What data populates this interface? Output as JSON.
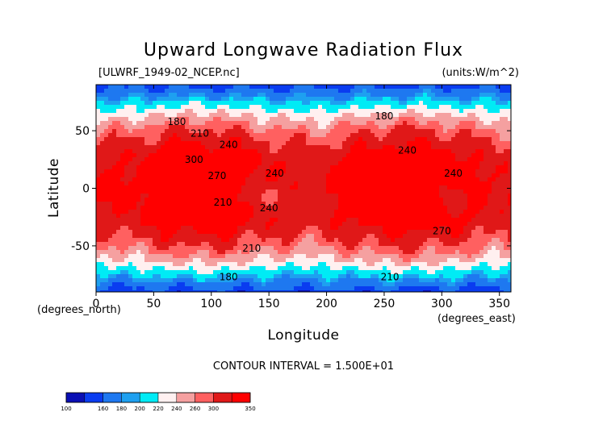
{
  "chart_data": {
    "type": "heatmap",
    "title": "Upward Longwave Radiation Flux",
    "file_label": "[ULWRF_1949-02_NCEP.nc]",
    "units_label": "(units:W/m^2)",
    "xlabel": "Longitude",
    "ylabel": "Latitude",
    "x_unit_label": "(degrees_east)",
    "y_unit_label": "(degrees_north)",
    "xlim": [
      0,
      360
    ],
    "ylim": [
      -90,
      90
    ],
    "x_ticks": [
      "0",
      "50",
      "100",
      "150",
      "200",
      "250",
      "300",
      "350"
    ],
    "y_ticks": [
      "50",
      "0",
      "-50"
    ],
    "contour_interval_text": "CONTOUR INTERVAL = 1.500E+01",
    "contour_labels": [
      {
        "text": "180",
        "lon": 70,
        "lat": 55
      },
      {
        "text": "210",
        "lon": 90,
        "lat": 45
      },
      {
        "text": "240",
        "lon": 115,
        "lat": 35
      },
      {
        "text": "300",
        "lon": 85,
        "lat": 22
      },
      {
        "text": "240",
        "lon": 155,
        "lat": 10
      },
      {
        "text": "270",
        "lon": 105,
        "lat": 8
      },
      {
        "text": "210",
        "lon": 110,
        "lat": -15
      },
      {
        "text": "240",
        "lon": 150,
        "lat": -20
      },
      {
        "text": "180",
        "lon": 250,
        "lat": 60
      },
      {
        "text": "240",
        "lon": 270,
        "lat": 30
      },
      {
        "text": "240",
        "lon": 310,
        "lat": 10
      },
      {
        "text": "270",
        "lon": 300,
        "lat": -40
      },
      {
        "text": "210",
        "lon": 135,
        "lat": -55
      },
      {
        "text": "180",
        "lon": 115,
        "lat": -80
      },
      {
        "text": "210",
        "lon": 255,
        "lat": -80
      }
    ],
    "colorbar": {
      "levels": [
        "100",
        "160",
        "180",
        "200",
        "220",
        "240",
        "260",
        "300",
        "350"
      ],
      "colors": [
        "#0a0fb4",
        "#0a3cf0",
        "#1e78f0",
        "#1ea0f0",
        "#00ebf5",
        "#fff0f0",
        "#f5a0a0",
        "#ff6060",
        "#e01818",
        "#ff0000"
      ]
    }
  }
}
